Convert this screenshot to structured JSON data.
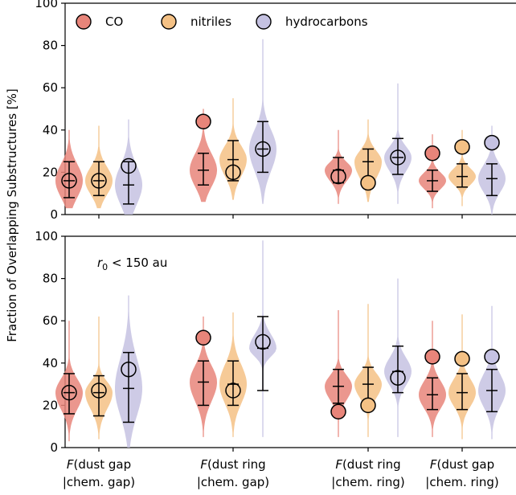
{
  "chart_data": {
    "type": "violin",
    "ylabel": "Fraction of Overlapping Substructures [%]",
    "ylim": [
      0,
      100
    ],
    "yticks": [
      "0",
      "20",
      "40",
      "60",
      "80",
      "100"
    ],
    "categories": [
      {
        "line1_italic": "F",
        "line1_rest": "(dust gap",
        "line2": "|chem. gap)"
      },
      {
        "line1_italic": "F",
        "line1_rest": "(dust ring",
        "line2": "|chem. gap)"
      },
      {
        "line1_italic": "F",
        "line1_rest": "(dust ring",
        "line2": "|chem. ring)"
      },
      {
        "line1_italic": "F",
        "line1_rest": "(dust gap",
        "line2": "|chem. ring)"
      }
    ],
    "series": [
      {
        "name": "CO",
        "color": "#e8857a"
      },
      {
        "name": "nitriles",
        "color": "#f4c185"
      },
      {
        "name": "hydrocarbons",
        "color": "#c5c2e2"
      }
    ],
    "legend_position": "top-left",
    "panels": [
      {
        "annotation": "",
        "groups": [
          [
            {
              "observed": 16,
              "median": 16,
              "p16": 10,
              "p84": 22,
              "p5": 8,
              "p95": 25,
              "min": 3,
              "max": 40
            },
            {
              "observed": 16,
              "median": 16,
              "p16": 11,
              "p84": 21,
              "p5": 9,
              "p95": 25,
              "min": 3,
              "max": 42
            },
            {
              "observed": 23,
              "median": 14,
              "p16": 7,
              "p84": 21,
              "p5": 5,
              "p95": 25,
              "min": 0,
              "max": 45
            }
          ],
          [
            {
              "observed": 44,
              "median": 21,
              "p16": 15,
              "p84": 27,
              "p5": 14,
              "p95": 29,
              "min": 6,
              "max": 50
            },
            {
              "observed": 20,
              "median": 26,
              "p16": 20,
              "p84": 31,
              "p5": 16,
              "p95": 35,
              "min": 7,
              "max": 55
            },
            {
              "observed": 31,
              "median": 31,
              "p16": 23,
              "p84": 38,
              "p5": 20,
              "p95": 44,
              "min": 5,
              "max": 83
            }
          ],
          [
            {
              "observed": 18,
              "median": 21,
              "p16": 17,
              "p84": 24,
              "p5": 15,
              "p95": 27,
              "min": 5,
              "max": 40
            },
            {
              "observed": 15,
              "median": 25,
              "p16": 19,
              "p84": 29,
              "p5": 16,
              "p95": 31,
              "min": 6,
              "max": 45
            },
            {
              "observed": 27,
              "median": 27,
              "p16": 22,
              "p84": 31,
              "p5": 19,
              "p95": 36,
              "min": 5,
              "max": 62
            }
          ],
          [
            {
              "observed": 29,
              "median": 16,
              "p16": 13,
              "p84": 19,
              "p5": 11,
              "p95": 21,
              "min": 3,
              "max": 38
            },
            {
              "observed": 32,
              "median": 18,
              "p16": 15,
              "p84": 21,
              "p5": 13,
              "p95": 24,
              "min": 4,
              "max": 40
            },
            {
              "observed": 34,
              "median": 17,
              "p16": 12,
              "p84": 22,
              "p5": 9,
              "p95": 24,
              "min": 0,
              "max": 42
            }
          ]
        ]
      },
      {
        "annotation": "r0 < 150 au",
        "annotation_parts": {
          "italic": "r",
          "sub": "0",
          "rest": " < 150 au"
        },
        "groups": [
          [
            {
              "observed": 26,
              "median": 26,
              "p16": 20,
              "p84": 31,
              "p5": 16,
              "p95": 35,
              "min": 3,
              "max": 60
            },
            {
              "observed": 27,
              "median": 26,
              "p16": 20,
              "p84": 30,
              "p5": 15,
              "p95": 34,
              "min": 4,
              "max": 62
            },
            {
              "observed": 37,
              "median": 28,
              "p16": 18,
              "p84": 39,
              "p5": 12,
              "p95": 45,
              "min": 0,
              "max": 72
            }
          ],
          [
            {
              "observed": 52,
              "median": 31,
              "p16": 24,
              "p84": 37,
              "p5": 20,
              "p95": 41,
              "min": 5,
              "max": 62
            },
            {
              "observed": 27,
              "median": 30,
              "p16": 23,
              "p84": 37,
              "p5": 20,
              "p95": 41,
              "min": 5,
              "max": 64
            },
            {
              "observed": 50,
              "median": 47,
              "p16": 44,
              "p84": 52,
              "p5": 27,
              "p95": 62,
              "min": 5,
              "max": 98
            }
          ],
          [
            {
              "observed": 17,
              "median": 29,
              "p16": 24,
              "p84": 33,
              "p5": 21,
              "p95": 37,
              "min": 5,
              "max": 65
            },
            {
              "observed": 20,
              "median": 30,
              "p16": 25,
              "p84": 34,
              "p5": 21,
              "p95": 38,
              "min": 5,
              "max": 68
            },
            {
              "observed": 33,
              "median": 36,
              "p16": 31,
              "p84": 41,
              "p5": 26,
              "p95": 48,
              "min": 5,
              "max": 80
            }
          ],
          [
            {
              "observed": 43,
              "median": 25,
              "p16": 20,
              "p84": 30,
              "p5": 18,
              "p95": 33,
              "min": 5,
              "max": 60
            },
            {
              "observed": 42,
              "median": 26,
              "p16": 21,
              "p84": 31,
              "p5": 18,
              "p95": 35,
              "min": 4,
              "max": 63
            },
            {
              "observed": 43,
              "median": 27,
              "p16": 21,
              "p84": 33,
              "p5": 17,
              "p95": 37,
              "min": 4,
              "max": 67
            }
          ]
        ]
      }
    ]
  }
}
